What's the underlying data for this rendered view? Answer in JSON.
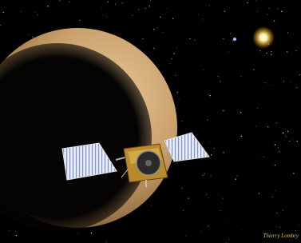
{
  "credit": "Thierry Lombry"
}
